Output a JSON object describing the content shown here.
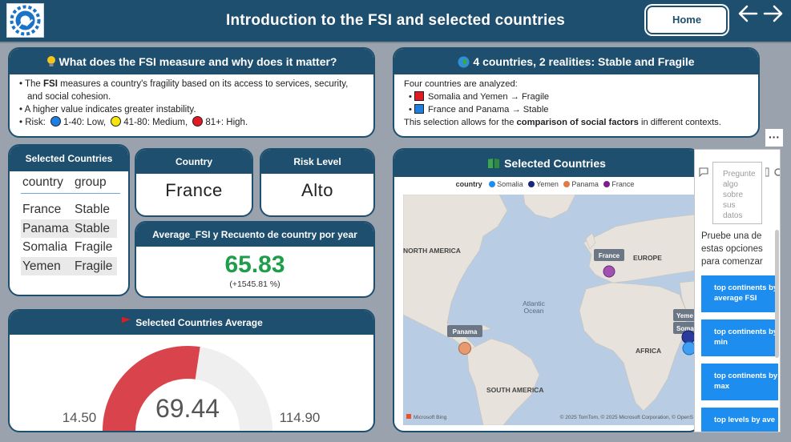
{
  "header": {
    "title": "Introduction to the FSI and selected countries",
    "home_label": "Home"
  },
  "fsi_card": {
    "title": "What does the FSI measure and why does it matter?",
    "bullet1_prefix": "The ",
    "bullet1_bold": "FSI",
    "bullet1_rest": " measures a country's fragility based on its access to services, security,",
    "bullet1_cont": "and social cohesion.",
    "bullet2": "A higher value indicates greater instability.",
    "risk_label": "Risk:",
    "risk_levels": [
      {
        "text": "1-40: Low,",
        "color": "#1d7fe0"
      },
      {
        "text": "41-80: Medium,",
        "color": "#f5e50a"
      },
      {
        "text": "81+: High.",
        "color": "#e21b22"
      }
    ]
  },
  "countries_card": {
    "title": "4 countries, 2 realities: Stable and Fragile",
    "intro": "Four countries are analyzed:",
    "fragile_text": "Somalia and Yemen → Fragile",
    "stable_text": "France and Panama → Stable",
    "fragile_color": "#e21b22",
    "stable_color": "#1d7fe0",
    "closing_prefix": "This selection allows for the ",
    "closing_bold": "comparison of social factors",
    "closing_suffix": " in different contexts."
  },
  "selected_table": {
    "title": "Selected Countries",
    "headers": [
      "country",
      "group"
    ],
    "rows": [
      [
        "France",
        "Stable"
      ],
      [
        "Panama",
        "Stable"
      ],
      [
        "Somalia",
        "Fragile"
      ],
      [
        "Yemen",
        "Fragile"
      ]
    ]
  },
  "country_card": {
    "title": "Country",
    "value": "France"
  },
  "risk_card": {
    "title": "Risk Level",
    "value": "Alto"
  },
  "avg_card": {
    "title": "Average_FSI y Recuento de country por year",
    "value": "65.83",
    "change": "(+1545.81 %)"
  },
  "gauge_card": {
    "title": "Selected Countries Average",
    "value": "69.44",
    "min": "14.50",
    "max": "114.90",
    "value_num": 69.44,
    "min_num": 14.5,
    "max_num": 114.9,
    "fill_color": "#d9434b",
    "track_color": "#efefef"
  },
  "map_card": {
    "title": "Selected Countries",
    "legend_title": "country",
    "legend": [
      {
        "name": "Somalia",
        "color": "#1d8ef0"
      },
      {
        "name": "Yemen",
        "color": "#1a237e"
      },
      {
        "name": "Panama",
        "color": "#e07b45"
      },
      {
        "name": "France",
        "color": "#7b1f8f"
      }
    ],
    "labels": {
      "north_america": "NORTH AMERICA",
      "europe": "EUROPE",
      "atlantic": "Atlantic",
      "ocean": "Ocean",
      "africa": "AFRICA",
      "south_america": "SOUTH AMERICA",
      "france_tag": "France",
      "panama_tag": "Panama",
      "yemen_tag": "Yeme",
      "somalia_tag": "Soma"
    },
    "attribution": "© 2025 TomTom, © 2025 Microsoft Corporation, © OpenS",
    "bing": "Microsoft Bing"
  },
  "qa_panel": {
    "input_placeholder": [
      "Pregunte",
      "algo",
      "sobre",
      "sus",
      "datos"
    ],
    "prompt": "Pruebe una de estas opciones para comenzar",
    "suggestions": [
      [
        "top continents by",
        "average FSI"
      ],
      [
        "top continents by",
        "min"
      ],
      [
        "top continents by",
        "max"
      ],
      [
        "top levels by ave",
        ""
      ]
    ],
    "more_label": "···"
  }
}
